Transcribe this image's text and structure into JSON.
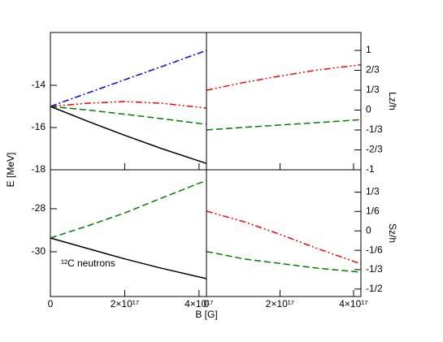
{
  "chart_data": [
    {
      "type": "line",
      "ylabel": "E [MeV]",
      "x": [
        0,
        1e+17,
        2e+17,
        3e+17,
        4.2e+17
      ],
      "xlim": [
        0,
        4.2e+17
      ],
      "xticks": [
        0,
        2e+17,
        4e+17
      ],
      "ylim": [
        -18,
        -11.5
      ],
      "yticks": [
        -18,
        -16,
        -14
      ],
      "series": [
        {
          "name": "blue",
          "color": "#0000ff",
          "dash": "8,3,2,3",
          "values": [
            -15,
            -14.37,
            -13.74,
            -13.11,
            -12.35
          ]
        },
        {
          "name": "red",
          "color": "#ff0000",
          "dash": "8,3,2,3,2,3",
          "values": [
            -15,
            -14.85,
            -14.77,
            -14.85,
            -15.08
          ]
        },
        {
          "name": "green",
          "color": "#008000",
          "dash": "8,4",
          "values": [
            -15,
            -15.17,
            -15.37,
            -15.58,
            -15.85
          ]
        },
        {
          "name": "black",
          "color": "#000000",
          "dash": "none",
          "values": [
            -15,
            -15.7,
            -16.37,
            -17.0,
            -17.7
          ]
        }
      ]
    },
    {
      "type": "line",
      "ylabel": "Lz/h",
      "x": [
        0,
        1e+17,
        2e+17,
        3e+17,
        4.2e+17
      ],
      "xlim": [
        0,
        4.2e+17
      ],
      "xticks": [
        0,
        2e+17,
        4e+17
      ],
      "ylim": [
        -1,
        1.3
      ],
      "yticks": [
        -1,
        {
          "value": -0.667,
          "label": "-2/3"
        },
        {
          "value": -0.333,
          "label": "-1/3"
        },
        0,
        {
          "value": 0.333,
          "label": "1/3"
        },
        {
          "value": 0.667,
          "label": "2/3"
        },
        1
      ],
      "series": [
        {
          "name": "red",
          "color": "#ff0000",
          "dash": "8,3,2,3,2,3",
          "values": [
            0.333,
            0.46,
            0.57,
            0.67,
            0.76
          ]
        },
        {
          "name": "green",
          "color": "#008000",
          "dash": "8,4",
          "values": [
            -0.333,
            -0.29,
            -0.25,
            -0.21,
            -0.16
          ]
        }
      ]
    },
    {
      "type": "line",
      "xlabel": "B [G]",
      "annotation": "¹²C neutrons",
      "x": [
        0,
        1e+17,
        2e+17,
        3e+17,
        4.2e+17
      ],
      "xlim": [
        0,
        4.2e+17
      ],
      "xticks": [
        0,
        {
          "value": 2e+17,
          "label": "2×10¹⁷"
        },
        {
          "value": 4e+17,
          "label": "4×10¹⁷"
        }
      ],
      "ylim": [
        -32.08,
        -26.19
      ],
      "yticks": [
        -30,
        -28
      ],
      "series": [
        {
          "name": "green",
          "color": "#008000",
          "dash": "8,4",
          "values": [
            -29.36,
            -28.8,
            -28.2,
            -27.5,
            -26.68
          ]
        },
        {
          "name": "black",
          "color": "#000000",
          "dash": "none",
          "values": [
            -29.36,
            -29.85,
            -30.33,
            -30.77,
            -31.25
          ]
        }
      ]
    },
    {
      "type": "line",
      "ylabel": "Sz/h",
      "x": [
        0,
        1e+17,
        2e+17,
        3e+17,
        4.2e+17
      ],
      "xlim": [
        0,
        4.2e+17
      ],
      "xticks": [
        0,
        {
          "value": 2e+17,
          "label": "2×10¹⁷"
        },
        {
          "value": 4e+17,
          "label": "4×10¹⁷"
        }
      ],
      "ylim": [
        -0.564,
        0.525
      ],
      "yticks": [
        {
          "value": -0.5,
          "label": "-1/2"
        },
        {
          "value": -0.333,
          "label": "-1/3"
        },
        {
          "value": -0.167,
          "label": "-1/6"
        },
        0,
        {
          "value": 0.167,
          "label": "1/6"
        },
        {
          "value": 0.333,
          "label": "1/3"
        }
      ],
      "series": [
        {
          "name": "red",
          "color": "#ff0000",
          "dash": "8,3,2,3,2,3",
          "values": [
            0.17,
            0.08,
            -0.03,
            -0.15,
            -0.284
          ]
        },
        {
          "name": "green",
          "color": "#008000",
          "dash": "8,4",
          "values": [
            -0.177,
            -0.24,
            -0.28,
            -0.32,
            -0.355
          ]
        }
      ]
    }
  ]
}
